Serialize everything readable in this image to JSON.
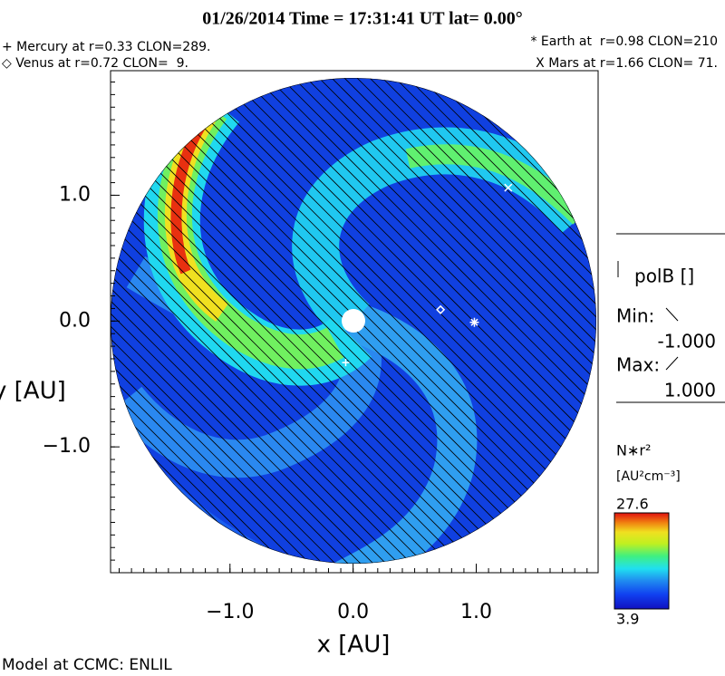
{
  "header": {
    "title": "01/26/2014 Time = 17:31:41 UT lat= 0.00°",
    "left_lines": [
      "+ Mercury at r=0.33 CLON=289.",
      "◇ Venus at r=0.72 CLON=  9."
    ],
    "right_lines": [
      "* Earth at  r=0.98 CLON=210",
      "X Mars at r=1.66 CLON= 71."
    ]
  },
  "chart_data": {
    "type": "heliosphere-map",
    "x_label": "x [AU]",
    "y_label": "y [AU]",
    "xlim": [
      -1.97,
      1.99
    ],
    "ylim": [
      -2.0,
      1.99
    ],
    "xticks": [
      {
        "value": -1,
        "label": "−1.0"
      },
      {
        "value": 0,
        "label": "0.0"
      },
      {
        "value": 1,
        "label": "1.0"
      }
    ],
    "yticks": [
      {
        "value": -1,
        "label": "−1.0"
      },
      {
        "value": 0,
        "label": "0.0"
      },
      {
        "value": 1,
        "label": "1.0"
      }
    ],
    "planets": [
      {
        "marker": "plus",
        "x": -0.06,
        "y": -0.33
      },
      {
        "marker": "diamond",
        "x": 0.71,
        "y": 0.09
      },
      {
        "marker": "star",
        "x": 0.985,
        "y": -0.01
      },
      {
        "marker": "cross",
        "x": 1.26,
        "y": 1.06
      }
    ],
    "colorbar": {
      "title": "N∗r²",
      "unit": "[AU²cm⁻³]",
      "clim": [
        3.9,
        27.6
      ]
    },
    "hatch": {
      "title": "polB []",
      "min_label": "Min:",
      "min": {
        "value": -1,
        "label": "-1.000"
      },
      "max_label": "Max:",
      "max": {
        "value": 1,
        "label": "1.000"
      }
    }
  },
  "footer": "Model at CCMC: ENLIL"
}
